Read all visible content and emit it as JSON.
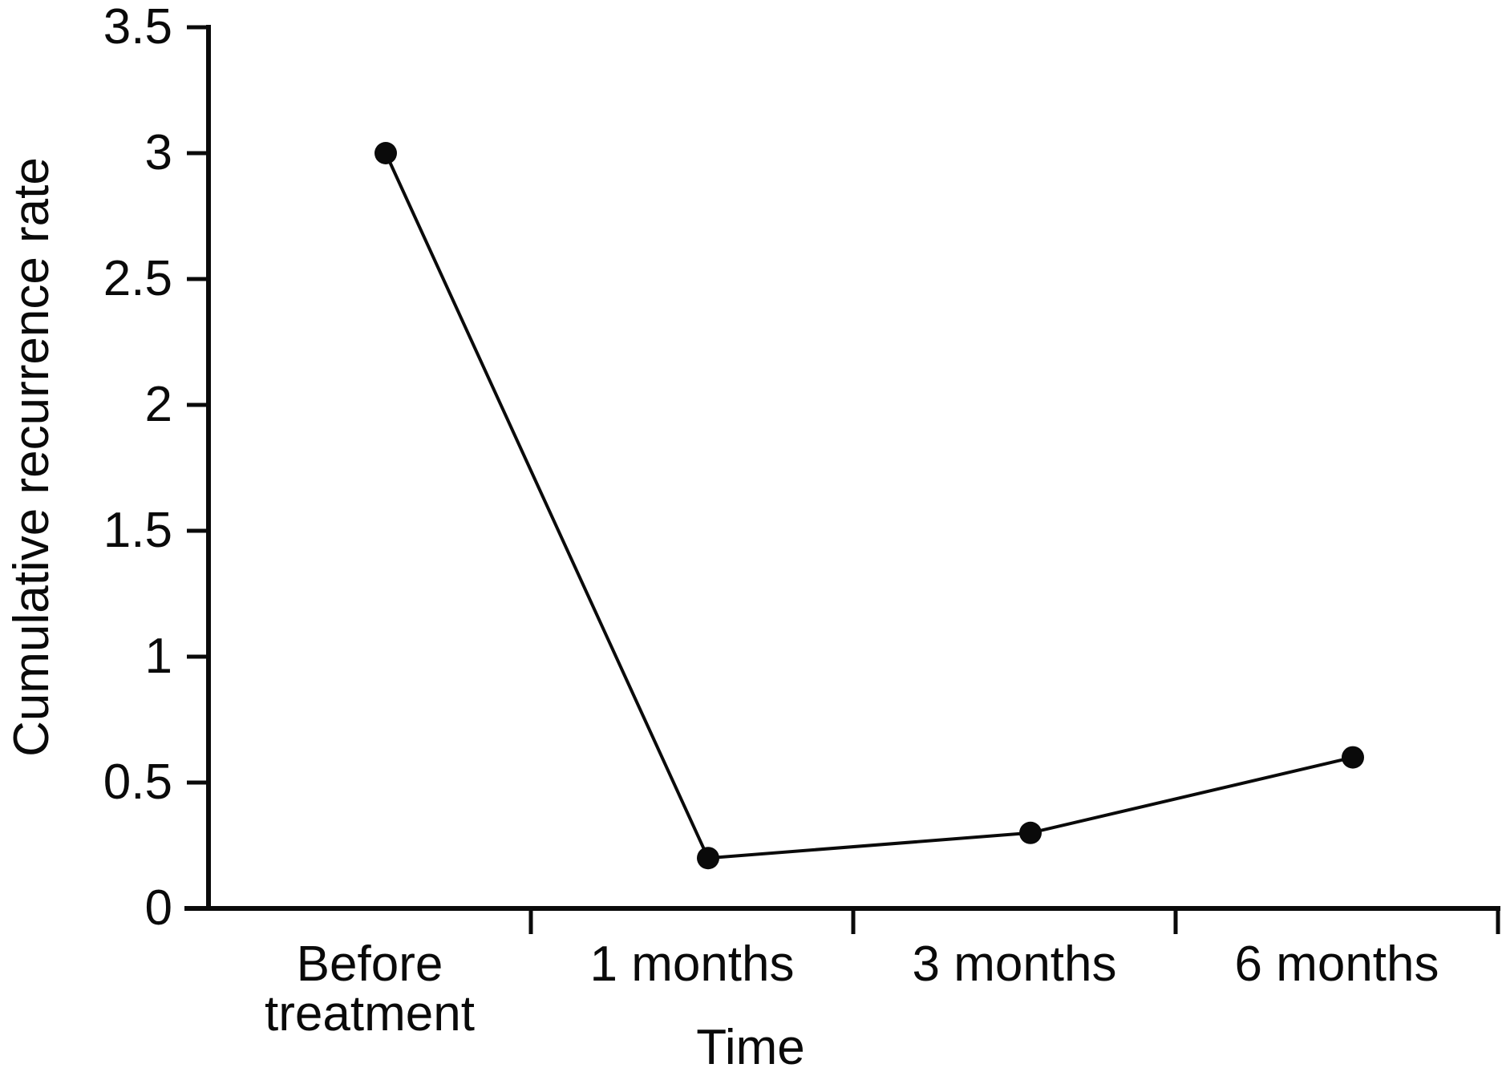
{
  "figure": {
    "background_color": "#ffffff",
    "ink_color": "#0a0a0a"
  },
  "chart_data": {
    "type": "line",
    "title": "",
    "categories": [
      "Before treatment",
      "1 months",
      "3 months",
      "6 months"
    ],
    "series": [
      {
        "name": "Cumulative recurrence rate",
        "values": [
          3.0,
          0.2,
          0.3,
          0.6
        ]
      }
    ],
    "xlabel": "Time",
    "ylabel": "Cumulative recurrence rate",
    "ylim": [
      0,
      3.5
    ],
    "yticks": [
      0,
      0.5,
      1,
      1.5,
      2,
      2.5,
      3,
      3.5
    ],
    "ytick_labels": [
      "0",
      "0.5",
      "1",
      "1.5",
      "2",
      "2.5",
      "3",
      "3.5"
    ],
    "grid": false,
    "legend_position": "none",
    "marker": "filled-circle",
    "line_color": "#0a0a0a",
    "marker_color": "#0a0a0a"
  }
}
